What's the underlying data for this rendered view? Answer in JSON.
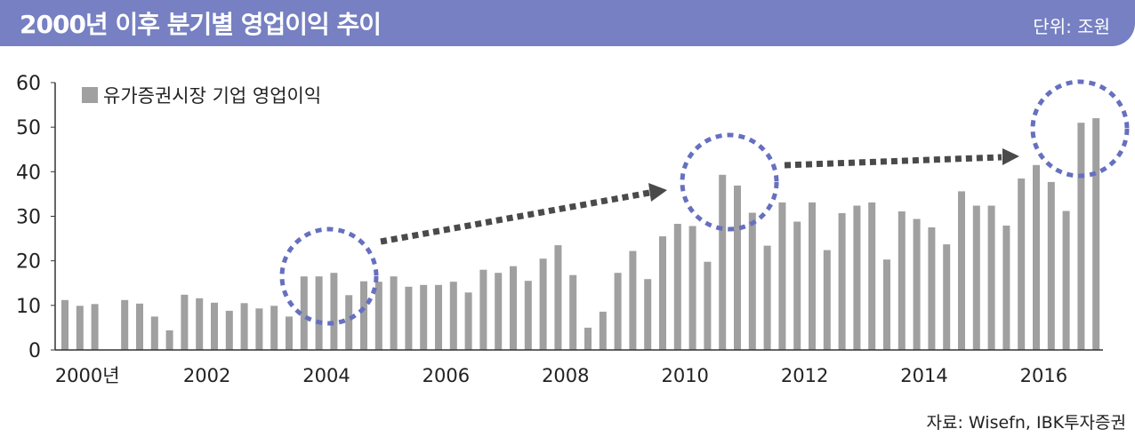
{
  "header": {
    "title": "2000년 이후 분기별 영업이익 추이",
    "unit": "단위: 조원"
  },
  "source": "자료: Wisefn, IBK투자증권",
  "colors": {
    "title_bar": "#7680c2",
    "bar": "#a0a0a0",
    "circle": "#6670bf",
    "arrow": "#4a4a4a"
  },
  "chart_data": {
    "type": "bar",
    "ylim": [
      0,
      60
    ],
    "yticks": [
      0,
      10,
      20,
      30,
      40,
      50,
      60
    ],
    "xtick_labels": [
      "2000년",
      "2002",
      "2004",
      "2006",
      "2008",
      "2010",
      "2012",
      "2014",
      "2016"
    ],
    "series": [
      {
        "name": "유가증권시장 기업 영업이익",
        "values": [
          11.2,
          9.9,
          10.3,
          null,
          11.2,
          10.4,
          7.5,
          4.4,
          12.4,
          11.6,
          10.6,
          8.8,
          10.5,
          9.3,
          9.9,
          7.5,
          16.5,
          16.5,
          17.3,
          12.3,
          15.4,
          15.3,
          16.5,
          14.2,
          14.6,
          14.6,
          15.3,
          12.9,
          18.0,
          17.3,
          18.8,
          15.5,
          20.5,
          23.5,
          16.8,
          5.0,
          8.6,
          17.3,
          22.2,
          15.9,
          25.5,
          28.3,
          27.8,
          19.8,
          39.3,
          36.9,
          30.8,
          23.4,
          33.1,
          28.8,
          33.1,
          22.4,
          30.7,
          32.4,
          33.1,
          20.3,
          31.1,
          29.4,
          27.5,
          23.7,
          35.6,
          32.4,
          32.4,
          27.9,
          38.5,
          41.5,
          37.7,
          31.2,
          51.0,
          52.0
        ]
      }
    ]
  }
}
